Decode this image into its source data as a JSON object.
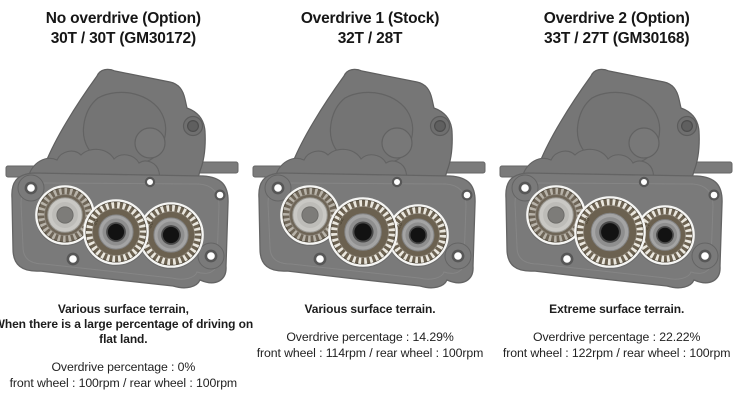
{
  "panels": [
    {
      "title": "No overdrive (Option)\n30T / 30T (GM30172)",
      "terrain": "Various surface terrain,\nWhen there is a large percentage of driving on\nflat land.",
      "stats": "Overdrive percentage : 0%\nfront wheel : 100rpm / rear wheel : 100rpm",
      "gears": {
        "middle_teeth": 30,
        "right_teeth": 30
      }
    },
    {
      "title": "Overdrive 1 (Stock)\n32T / 28T",
      "terrain": "Various surface terrain.",
      "stats": "Overdrive percentage : 14.29%\nfront wheel : 114rpm / rear wheel : 100rpm",
      "gears": {
        "middle_teeth": 32,
        "right_teeth": 28
      }
    },
    {
      "title": "Overdrive 2 (Option)\n33T / 27T (GM30168)",
      "terrain": "Extreme surface terrain.",
      "stats": "Overdrive percentage : 22.22%\nfront wheel : 122rpm / rear wheel : 100rpm",
      "gears": {
        "middle_teeth": 33,
        "right_teeth": 27
      }
    }
  ],
  "colors": {
    "background": "#ffffff",
    "text": "#1d1d1d",
    "housing_gray": "#767676",
    "gear_ring_bronze": "#6b6150",
    "gear_teeth_light": "#e9e6dd",
    "input_gear_teeth": "#b8b3a9",
    "gear_center_hole": "#121212"
  }
}
